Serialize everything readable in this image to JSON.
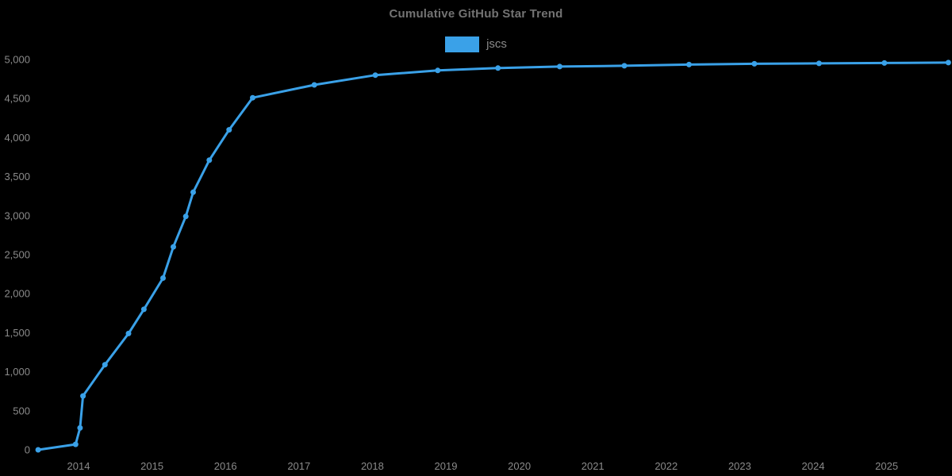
{
  "title": "Cumulative GitHub Star Trend",
  "legend": {
    "label": "jscs",
    "swatch_color": "#3aa1e8"
  },
  "colors": {
    "background": "#000000",
    "line": "#3aa1e8",
    "marker": "#3aa1e8",
    "title_text": "#737373",
    "tick_text": "#8a8a8a"
  },
  "chart_data": {
    "type": "line",
    "title": "Cumulative GitHub Star Trend",
    "xlabel": "",
    "ylabel": "",
    "xlim": [
      2013.4,
      2025.95
    ],
    "ylim": [
      0,
      5000
    ],
    "grid": false,
    "legend_position": "top-center",
    "x_ticks": [
      "2014",
      "2015",
      "2016",
      "2017",
      "2018",
      "2019",
      "2020",
      "2021",
      "2022",
      "2023",
      "2024",
      "2025"
    ],
    "y_ticks": [
      {
        "value": 0,
        "label": "0"
      },
      {
        "value": 500,
        "label": "500"
      },
      {
        "value": 1000,
        "label": "1,000"
      },
      {
        "value": 1500,
        "label": "1,500"
      },
      {
        "value": 2000,
        "label": "2,000"
      },
      {
        "value": 2500,
        "label": "2,500"
      },
      {
        "value": 3000,
        "label": "3,000"
      },
      {
        "value": 3500,
        "label": "3,500"
      },
      {
        "value": 4000,
        "label": "4,000"
      },
      {
        "value": 4500,
        "label": "4,500"
      },
      {
        "value": 5000,
        "label": "5,000"
      }
    ],
    "series": [
      {
        "name": "jscs",
        "color": "#3aa1e8",
        "points": [
          [
            2013.45,
            0
          ],
          [
            2013.96,
            70
          ],
          [
            2014.02,
            280
          ],
          [
            2014.06,
            690
          ],
          [
            2014.36,
            1090
          ],
          [
            2014.68,
            1490
          ],
          [
            2014.89,
            1800
          ],
          [
            2015.15,
            2200
          ],
          [
            2015.29,
            2600
          ],
          [
            2015.46,
            2990
          ],
          [
            2015.56,
            3300
          ],
          [
            2015.78,
            3710
          ],
          [
            2016.05,
            4100
          ],
          [
            2016.37,
            4510
          ],
          [
            2017.21,
            4675
          ],
          [
            2018.04,
            4800
          ],
          [
            2018.89,
            4860
          ],
          [
            2019.71,
            4890
          ],
          [
            2020.55,
            4910
          ],
          [
            2021.43,
            4920
          ],
          [
            2022.31,
            4935
          ],
          [
            2023.2,
            4945
          ],
          [
            2024.08,
            4950
          ],
          [
            2024.97,
            4955
          ],
          [
            2025.84,
            4960
          ]
        ]
      }
    ]
  }
}
